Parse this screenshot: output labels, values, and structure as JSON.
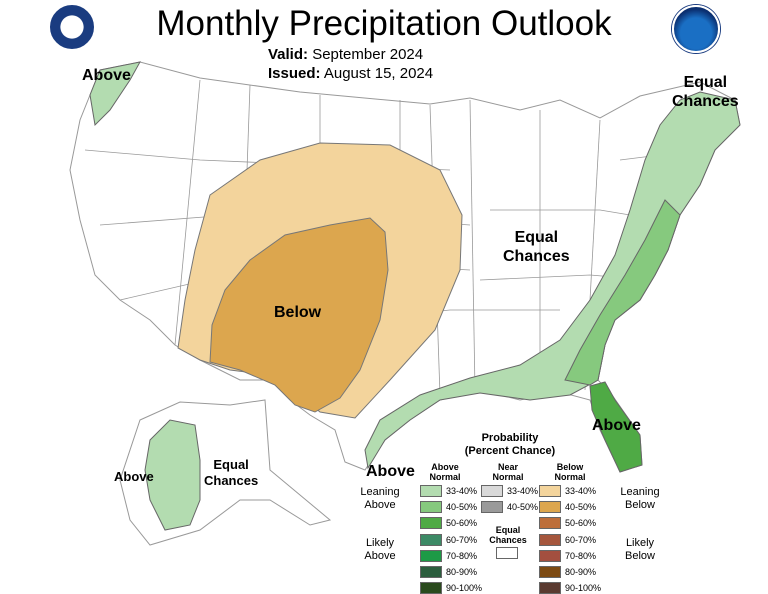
{
  "title": "Monthly Precipitation Outlook",
  "valid_label": "Valid:",
  "valid_value": "September 2024",
  "issued_label": "Issued:",
  "issued_value": "August 15, 2024",
  "region_labels": {
    "above_nw": "Above",
    "equal_ne_1": "Equal",
    "equal_ne_2": "Chances",
    "equal_c_1": "Equal",
    "equal_c_2": "Chances",
    "below": "Below",
    "above_se": "Above",
    "above_gulf": "Above",
    "above_ak": "Above",
    "equal_ak_1": "Equal",
    "equal_ak_2": "Chances"
  },
  "legend": {
    "title_1": "Probability",
    "title_2": "(Percent Chance)",
    "col_above_1": "Above",
    "col_above_2": "Normal",
    "col_near_1": "Near",
    "col_near_2": "Normal",
    "col_below_1": "Below",
    "col_below_2": "Normal",
    "leaning_above_1": "Leaning",
    "leaning_above_2": "Above",
    "likely_above_1": "Likely",
    "likely_above_2": "Above",
    "leaning_below_1": "Leaning",
    "leaning_below_2": "Below",
    "likely_below_1": "Likely",
    "likely_below_2": "Below",
    "equal_1": "Equal",
    "equal_2": "Chances",
    "above_ranges": [
      "33-40%",
      "40-50%",
      "50-60%",
      "60-70%",
      "70-80%",
      "80-90%",
      "90-100%"
    ],
    "near_ranges": [
      "33-40%",
      "40-50%"
    ],
    "below_ranges": [
      "33-40%",
      "40-50%",
      "50-60%",
      "60-70%",
      "70-80%",
      "80-90%",
      "90-100%"
    ]
  },
  "colors": {
    "above": [
      "#b3dcb0",
      "#86c97e",
      "#4faa45",
      "#3d8a66",
      "#1d9a46",
      "#2c5e3e",
      "#2a4a1d"
    ],
    "near": [
      "#d9d9d9",
      "#9a9a9a"
    ],
    "below": [
      "#f3d49c",
      "#dca64e",
      "#bd6e3a",
      "#a5563d",
      "#a34f3f",
      "#7c4a12",
      "#5a3a30"
    ],
    "state_line": "#999999"
  },
  "icons": {
    "left_logo": "commerce-seal-icon",
    "right_logo": "noaa-logo-icon"
  }
}
